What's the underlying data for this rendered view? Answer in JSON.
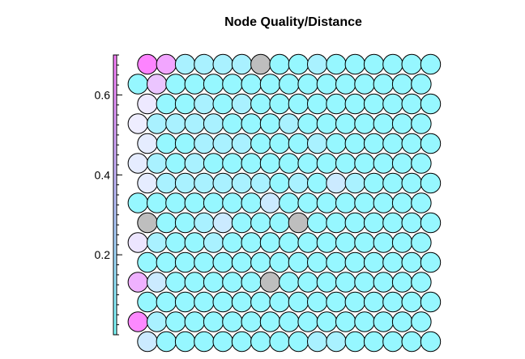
{
  "chart_data": {
    "type": "heatmap",
    "layout": "hexagonal",
    "title": "Node Quality/Distance",
    "colorbar": {
      "range": [
        0.0,
        0.7
      ],
      "ticks": [
        0.2,
        0.4,
        0.6
      ],
      "tick_labels": [
        "0.2",
        "0.4",
        "0.6"
      ],
      "low_color": "#80ffff",
      "high_color": "#ff80ff",
      "empty_color": "#bebebe"
    },
    "rows": [
      [
        0.69,
        0.61,
        0.1,
        0.1,
        0.1,
        0.1,
        null,
        0.05,
        0.05,
        0.1,
        0.05,
        0.05,
        0.05,
        0.05,
        0.05,
        0.05
      ],
      [
        0.05,
        0.52,
        0.05,
        0.05,
        0.05,
        0.05,
        0.05,
        0.05,
        0.05,
        0.05,
        0.05,
        0.05,
        0.05,
        0.05,
        0.05,
        0.05
      ],
      [
        0.38,
        0.05,
        0.05,
        0.1,
        0.05,
        0.1,
        0.05,
        0.05,
        0.05,
        0.05,
        0.05,
        0.05,
        0.05,
        0.05,
        0.05,
        0.05
      ],
      [
        0.36,
        0.1,
        0.1,
        0.1,
        0.1,
        0.05,
        0.05,
        0.05,
        0.1,
        0.05,
        0.05,
        0.05,
        0.05,
        0.05,
        0.05,
        0.05
      ],
      [
        0.3,
        0.05,
        0.05,
        0.1,
        0.1,
        0.1,
        0.05,
        0.05,
        0.05,
        0.1,
        0.05,
        0.05,
        0.05,
        0.05,
        0.05,
        0.05
      ],
      [
        0.3,
        0.1,
        0.05,
        0.1,
        0.05,
        0.05,
        0.05,
        0.05,
        0.05,
        0.05,
        0.05,
        0.05,
        0.05,
        0.05,
        0.05,
        0.05
      ],
      [
        0.3,
        0.1,
        0.1,
        0.1,
        0.1,
        0.1,
        0.1,
        0.05,
        0.1,
        0.05,
        0.2,
        0.1,
        0.05,
        0.05,
        0.05,
        0.05
      ],
      [
        0.05,
        0.05,
        0.05,
        0.05,
        0.05,
        0.05,
        0.05,
        0.2,
        0.05,
        0.05,
        0.05,
        0.05,
        0.05,
        0.05,
        0.05,
        0.05
      ],
      [
        null,
        0.05,
        0.05,
        0.1,
        0.2,
        0.05,
        0.05,
        0.05,
        null,
        0.05,
        0.05,
        0.05,
        0.05,
        0.05,
        0.05,
        0.05
      ],
      [
        0.4,
        0.1,
        0.05,
        0.05,
        0.1,
        0.05,
        0.05,
        0.05,
        0.05,
        0.05,
        0.05,
        0.05,
        0.05,
        0.05,
        0.05,
        0.05
      ],
      [
        0.05,
        0.05,
        0.05,
        0.05,
        0.05,
        0.05,
        0.05,
        0.05,
        0.05,
        0.05,
        0.05,
        0.05,
        0.05,
        0.05,
        0.05,
        0.05
      ],
      [
        0.58,
        0.2,
        0.05,
        0.05,
        0.05,
        0.05,
        0.05,
        null,
        0.05,
        0.05,
        0.05,
        0.05,
        0.05,
        0.05,
        0.05,
        0.05
      ],
      [
        0.05,
        0.05,
        0.05,
        0.05,
        0.05,
        0.05,
        0.05,
        0.05,
        0.05,
        0.05,
        0.05,
        0.05,
        0.05,
        0.05,
        0.05,
        0.05
      ],
      [
        0.68,
        0.1,
        0.05,
        0.05,
        0.05,
        0.05,
        0.05,
        0.05,
        0.05,
        0.05,
        0.05,
        0.05,
        0.05,
        0.05,
        0.05,
        0.05
      ],
      [
        0.2,
        0.05,
        0.05,
        0.05,
        0.05,
        0.05,
        0.05,
        0.05,
        0.05,
        0.1,
        0.1,
        0.05,
        0.05,
        0.05,
        0.05,
        0.05
      ]
    ]
  }
}
